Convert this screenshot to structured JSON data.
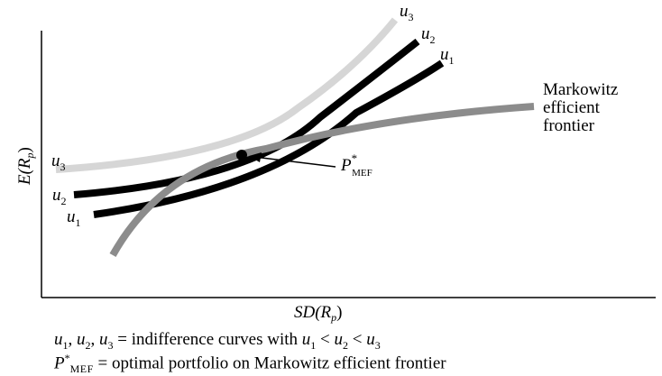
{
  "axes": {
    "y_label": "E(R",
    "y_label_sub": "p",
    "y_label_close": ")",
    "x_label": "SD(R",
    "x_label_sub": "p",
    "x_label_close": ")"
  },
  "curves": {
    "u1": {
      "letter": "u",
      "sub": "1",
      "color": "#000000"
    },
    "u2": {
      "letter": "u",
      "sub": "2",
      "color": "#000000"
    },
    "u3": {
      "letter": "u",
      "sub": "3",
      "color": "#d6d6d6"
    },
    "frontier": {
      "color": "#8c8c8c"
    }
  },
  "frontier_label": [
    "Markowitz",
    "efficient",
    "frontier"
  ],
  "optimal": {
    "letter": "P",
    "sup": "*",
    "sub": "MEF"
  },
  "legend": {
    "line1": {
      "u": "u",
      "s1": "1",
      "s2": "2",
      "s3": "3",
      "sep": ", ",
      "eq": " = indifference curves with ",
      "lt": " < "
    },
    "line2": {
      "p": "P",
      "sup": "*",
      "sub": "MEF",
      "text": " = optimal portfolio on Markowitz efficient frontier"
    }
  }
}
